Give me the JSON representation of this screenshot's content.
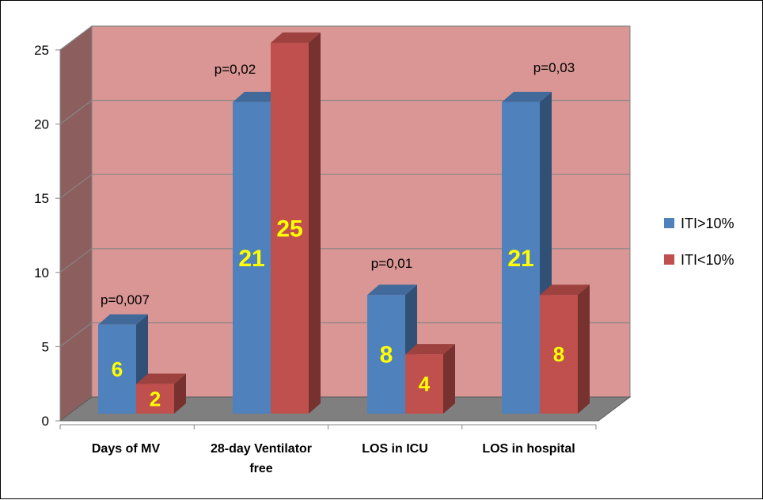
{
  "chart_data": {
    "type": "bar",
    "categories": [
      [
        "Days of MV"
      ],
      [
        "28-day Ventilator",
        "free"
      ],
      [
        "LOS in ICU"
      ],
      [
        "LOS in hospital"
      ]
    ],
    "series": [
      {
        "name": "ITI>10%",
        "color": "#4f81bd",
        "values": [
          6,
          21,
          8,
          21
        ]
      },
      {
        "name": "ITI<10%",
        "color": "#c0504d",
        "values": [
          2,
          25,
          4,
          8
        ]
      }
    ],
    "annotations": [
      "p=0,007",
      "p=0,02",
      "p=0,01",
      "p=0,03"
    ],
    "ylim": [
      0,
      25
    ],
    "yticks": [
      0,
      5,
      10,
      15,
      20,
      25
    ],
    "grid": true,
    "legend_position": "right",
    "plot_background": "#d99694",
    "floor_color": "#7f7f7f",
    "label_color": "#ffff00"
  }
}
